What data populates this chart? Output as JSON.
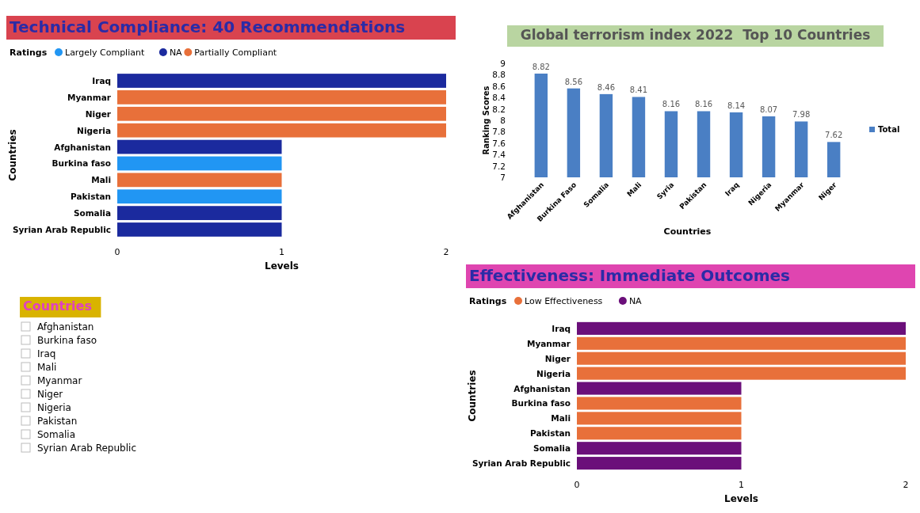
{
  "chart_data": [
    {
      "type": "bar",
      "orientation": "horizontal",
      "stacked": true,
      "title": "Technical Compliance: 40 Recommendations",
      "legend_title": "Ratings",
      "legend": "top left",
      "xlabel": "Levels",
      "ylabel": "Countries",
      "categories": [
        "Iraq",
        "Myanmar",
        "Niger",
        "Nigeria",
        "Afghanistan",
        "Burkina faso",
        "Mali",
        "Pakistan",
        "Somalia",
        "Syrian Arab Republic"
      ],
      "series": [
        {
          "name": "Largely Compliant",
          "color": "#2196f3",
          "values": [
            null,
            null,
            null,
            null,
            null,
            1,
            null,
            1,
            null,
            null
          ]
        },
        {
          "name": "NA",
          "color": "#1b2a9e",
          "values": [
            2,
            null,
            null,
            null,
            1,
            null,
            null,
            null,
            1,
            1
          ]
        },
        {
          "name": "Partially Compliant",
          "color": "#e8703a",
          "values": [
            null,
            2,
            2,
            2,
            null,
            null,
            1,
            null,
            null,
            null
          ]
        }
      ],
      "xlim": [
        0,
        2
      ],
      "xticks": [
        0,
        1,
        2
      ]
    },
    {
      "type": "bar",
      "title": "Global terrorism index 2022  Top 10 Countries",
      "xlabel": "Countries",
      "ylabel": "Ranking Scores",
      "legend": "right",
      "data_labels": true,
      "categories": [
        "Afghanistan",
        "Burkina Faso",
        "Somalia",
        "Mali",
        "Syria",
        "Pakistan",
        "Iraq",
        "Nigeria",
        "Myanmar",
        "Niger"
      ],
      "series": [
        {
          "name": "Total",
          "color": "#4a7fc4",
          "values": [
            8.82,
            8.56,
            8.46,
            8.41,
            8.16,
            8.16,
            8.14,
            8.07,
            7.98,
            7.62
          ]
        }
      ],
      "ylim": [
        7,
        9
      ],
      "yticks": [
        7,
        7.2,
        7.4,
        7.6,
        7.8,
        8,
        8.2,
        8.4,
        8.6,
        8.8,
        9
      ]
    },
    {
      "type": "bar",
      "orientation": "horizontal",
      "stacked": true,
      "title": "Effectiveness: Immediate Outcomes",
      "legend_title": "Ratings",
      "legend": "top left",
      "xlabel": "Levels",
      "ylabel": "Countries",
      "categories": [
        "Iraq",
        "Myanmar",
        "Niger",
        "Nigeria",
        "Afghanistan",
        "Burkina faso",
        "Mali",
        "Pakistan",
        "Somalia",
        "Syrian Arab Republic"
      ],
      "series": [
        {
          "name": "Low Effectiveness",
          "color": "#e8703a",
          "values": [
            null,
            2,
            2,
            2,
            null,
            1,
            1,
            1,
            null,
            null
          ]
        },
        {
          "name": "NA",
          "color": "#6b0f7a",
          "values": [
            2,
            null,
            null,
            null,
            1,
            null,
            null,
            null,
            1,
            1
          ]
        }
      ],
      "xlim": [
        0,
        2
      ],
      "xticks": [
        0,
        1,
        2
      ]
    },
    {
      "type": "other",
      "title": "Countries",
      "annotations": [
        "Afghanistan",
        "Burkina faso",
        "Iraq",
        "Mali",
        "Myanmar",
        "Niger",
        "Nigeria",
        "Pakistan",
        "Somalia",
        "Syrian Arab Republic"
      ]
    }
  ]
}
